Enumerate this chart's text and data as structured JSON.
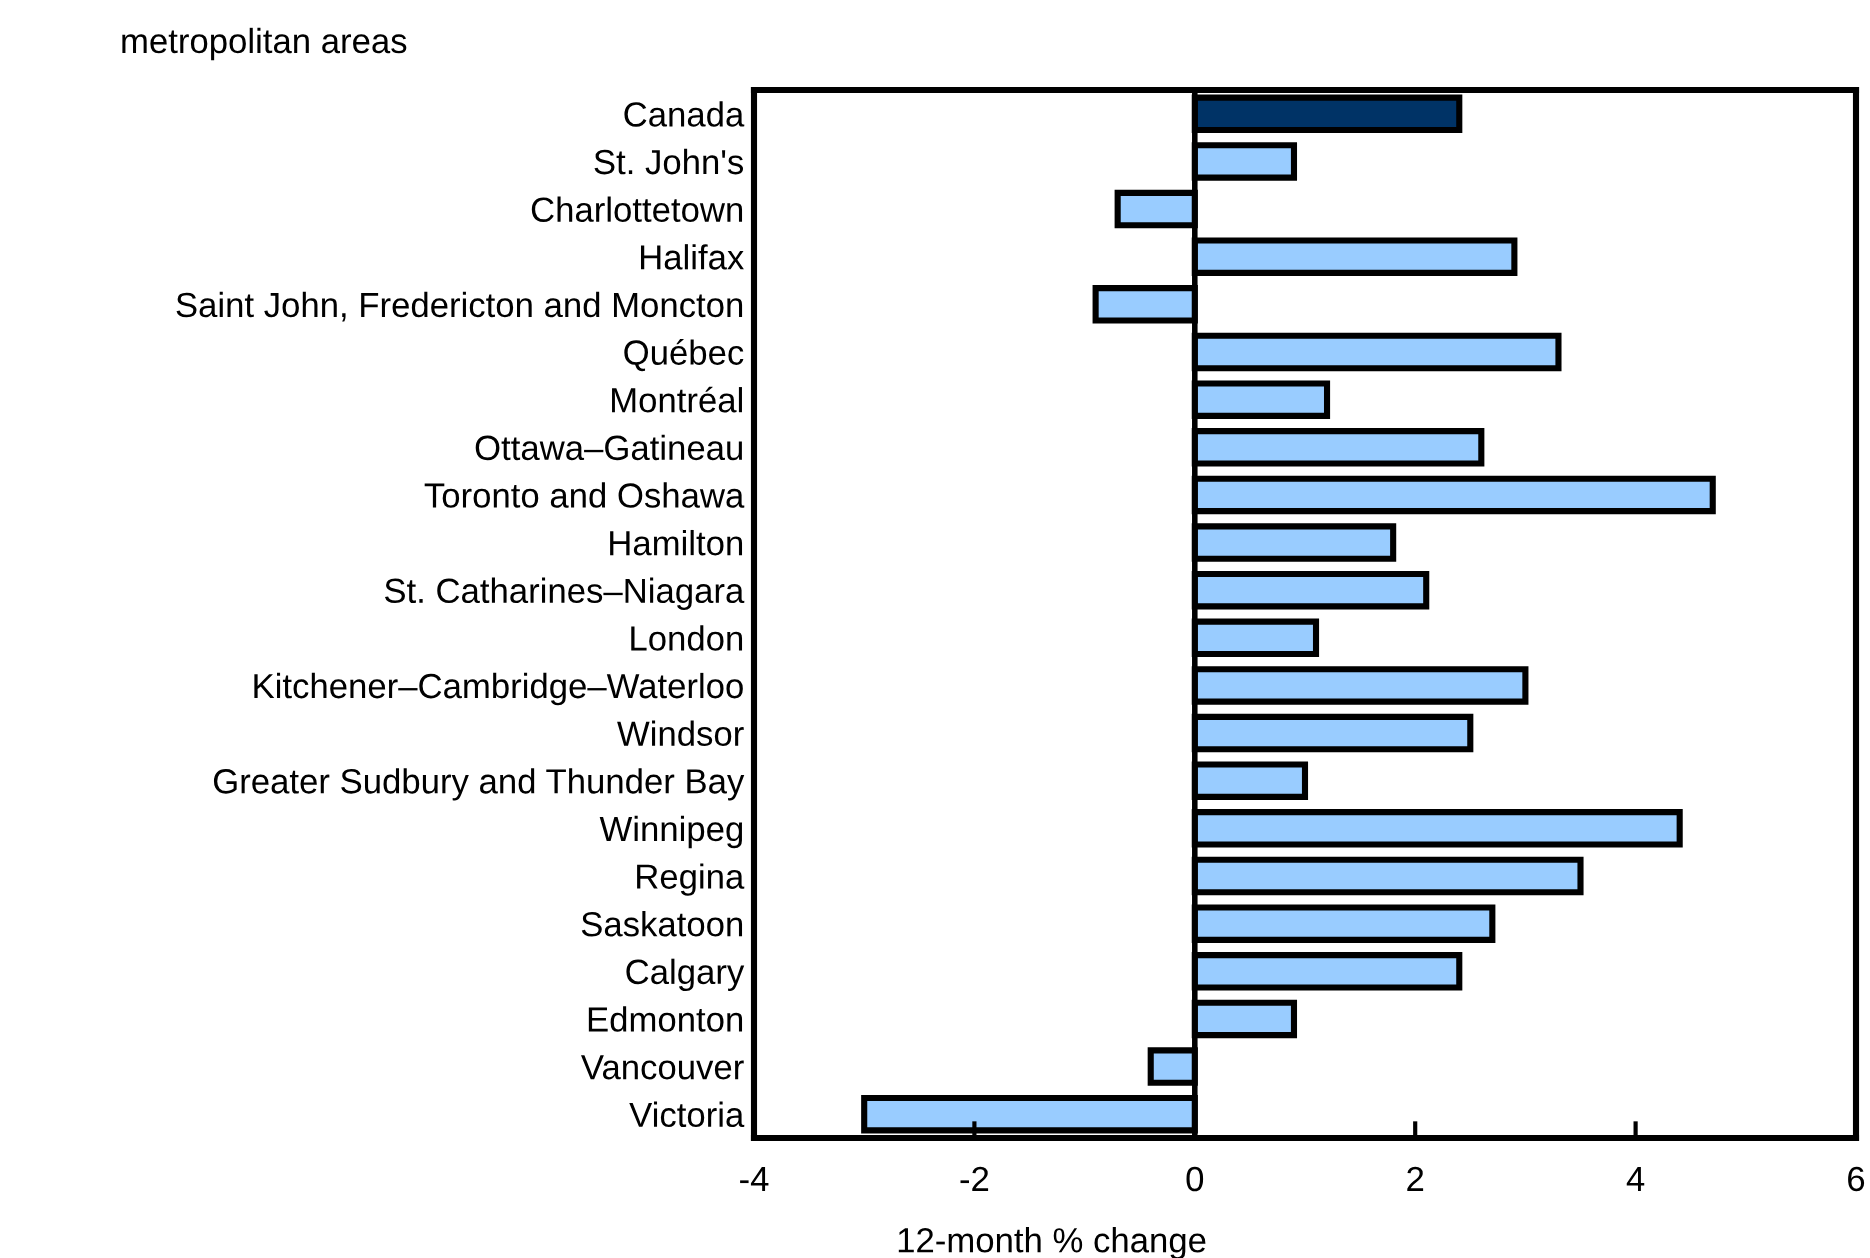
{
  "chart_data": {
    "type": "bar",
    "orientation": "horizontal",
    "ylabel": "metropolitan areas",
    "xlabel": "12-month % change",
    "categories": [
      "Canada",
      "St. John's",
      "Charlottetown",
      "Halifax",
      "Saint John, Fredericton and Moncton",
      "Québec",
      "Montréal",
      "Ottawa–Gatineau",
      "Toronto and Oshawa",
      "Hamilton",
      "St. Catharines–Niagara",
      "London",
      "Kitchener–Cambridge–Waterloo",
      "Windsor",
      "Greater Sudbury and Thunder Bay",
      "Winnipeg",
      "Regina",
      "Saskatoon",
      "Calgary",
      "Edmonton",
      "Vancouver",
      "Victoria"
    ],
    "values": [
      2.4,
      0.9,
      -0.7,
      2.9,
      -0.9,
      3.3,
      1.2,
      2.6,
      4.7,
      1.8,
      2.1,
      1.1,
      3.0,
      2.5,
      1.0,
      4.4,
      3.5,
      2.7,
      2.4,
      0.9,
      -0.4,
      -3.0
    ],
    "colors": [
      "#003366",
      "#99ccff",
      "#99ccff",
      "#99ccff",
      "#99ccff",
      "#99ccff",
      "#99ccff",
      "#99ccff",
      "#99ccff",
      "#99ccff",
      "#99ccff",
      "#99ccff",
      "#99ccff",
      "#99ccff",
      "#99ccff",
      "#99ccff",
      "#99ccff",
      "#99ccff",
      "#99ccff",
      "#99ccff",
      "#99ccff",
      "#99ccff"
    ],
    "xlim": [
      -4,
      6
    ],
    "xticks": [
      -4,
      -2,
      0,
      2,
      4,
      6
    ],
    "legend": false
  }
}
